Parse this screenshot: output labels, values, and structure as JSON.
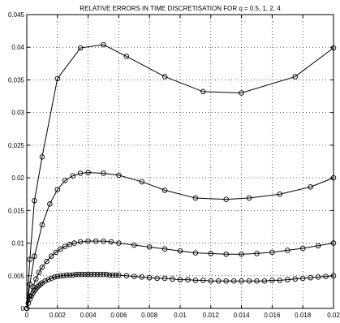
{
  "chart_data": {
    "type": "line",
    "title": "RELATIVE ERRORS IN TIME DISCRETISATION FOR q = 0.5, 1, 2, 4",
    "xlabel": "",
    "ylabel": "",
    "xlim": [
      0,
      0.02
    ],
    "ylim": [
      0,
      0.045
    ],
    "grid": true,
    "x_ticks": [
      "0",
      "0.002",
      "0.004",
      "0.006",
      "0.008",
      "0.01",
      "0.012",
      "0.014",
      "0.016",
      "0.018",
      "0.02"
    ],
    "y_ticks": [
      "0",
      "0.005",
      "0.01",
      "0.015",
      "0.02",
      "0.025",
      "0.03",
      "0.035",
      "0.04",
      "0.045"
    ],
    "series": [
      {
        "x": [
          0,
          0.0002,
          0.0005,
          0.001,
          0.002,
          0.0035,
          0.005,
          0.0065,
          0.009,
          0.0115,
          0.014,
          0.0175,
          0.02
        ],
        "values": [
          0,
          0.0075,
          0.0165,
          0.0232,
          0.0352,
          0.0399,
          0.0404,
          0.0386,
          0.0355,
          0.0332,
          0.033,
          0.0355,
          0.0399
        ]
      },
      {
        "x": [
          0,
          0.0002,
          0.0005,
          0.001,
          0.0015,
          0.002,
          0.0025,
          0.003,
          0.0035,
          0.004,
          0.005,
          0.006,
          0.0075,
          0.009,
          0.011,
          0.013,
          0.0145,
          0.0165,
          0.0185,
          0.02
        ],
        "values": [
          0,
          0.0037,
          0.008,
          0.0128,
          0.016,
          0.0182,
          0.0196,
          0.0203,
          0.0207,
          0.0208,
          0.0207,
          0.0204,
          0.0194,
          0.0181,
          0.0169,
          0.0167,
          0.0169,
          0.0175,
          0.0186,
          0.02
        ]
      },
      {
        "x": [
          0,
          0.0002,
          0.0004,
          0.0006,
          0.0008,
          0.001,
          0.0013,
          0.0016,
          0.0019,
          0.0022,
          0.0025,
          0.0028,
          0.0031,
          0.0035,
          0.004,
          0.0045,
          0.005,
          0.0055,
          0.006,
          0.007,
          0.008,
          0.009,
          0.01,
          0.011,
          0.012,
          0.013,
          0.014,
          0.015,
          0.016,
          0.017,
          0.018,
          0.019,
          0.02
        ],
        "values": [
          0,
          0.0019,
          0.0033,
          0.0045,
          0.0055,
          0.0063,
          0.0072,
          0.008,
          0.0086,
          0.0091,
          0.0095,
          0.0098,
          0.01,
          0.0102,
          0.0103,
          0.0103,
          0.0103,
          0.0102,
          0.01,
          0.0097,
          0.0094,
          0.0091,
          0.0088,
          0.0085,
          0.0084,
          0.0083,
          0.0083,
          0.0084,
          0.0086,
          0.0089,
          0.0092,
          0.0096,
          0.01
        ]
      },
      {
        "x": [
          0,
          0.0001,
          0.0002,
          0.0003,
          0.0004,
          0.0005,
          0.0006,
          0.0007,
          0.0008,
          0.0009,
          0.001,
          0.0012,
          0.0014,
          0.0016,
          0.0018,
          0.002,
          0.0022,
          0.0024,
          0.0026,
          0.0028,
          0.003,
          0.0032,
          0.0034,
          0.0036,
          0.0038,
          0.004,
          0.0042,
          0.0044,
          0.0046,
          0.0048,
          0.005,
          0.0052,
          0.0054,
          0.0056,
          0.0058,
          0.006,
          0.0065,
          0.007,
          0.0075,
          0.008,
          0.0085,
          0.009,
          0.0095,
          0.01,
          0.0105,
          0.011,
          0.0115,
          0.012,
          0.0125,
          0.013,
          0.0135,
          0.014,
          0.0145,
          0.015,
          0.0155,
          0.016,
          0.0165,
          0.017,
          0.0175,
          0.018,
          0.0185,
          0.019,
          0.0195,
          0.02
        ],
        "values": [
          0,
          0.0008,
          0.0014,
          0.0019,
          0.0023,
          0.0027,
          0.003,
          0.0033,
          0.0035,
          0.0037,
          0.0039,
          0.0042,
          0.0044,
          0.0046,
          0.0048,
          0.0049,
          0.005,
          0.005,
          0.0051,
          0.0051,
          0.0051,
          0.0052,
          0.0052,
          0.0052,
          0.0052,
          0.0052,
          0.0052,
          0.0052,
          0.0052,
          0.0052,
          0.0052,
          0.0052,
          0.0051,
          0.0051,
          0.0051,
          0.0051,
          0.005,
          0.0049,
          0.0048,
          0.0047,
          0.0046,
          0.0046,
          0.0045,
          0.0044,
          0.0044,
          0.0043,
          0.0043,
          0.0042,
          0.0042,
          0.0042,
          0.0042,
          0.0042,
          0.0042,
          0.0042,
          0.0042,
          0.0043,
          0.0043,
          0.0044,
          0.0045,
          0.0046,
          0.0047,
          0.0048,
          0.0049,
          0.005
        ]
      }
    ]
  }
}
